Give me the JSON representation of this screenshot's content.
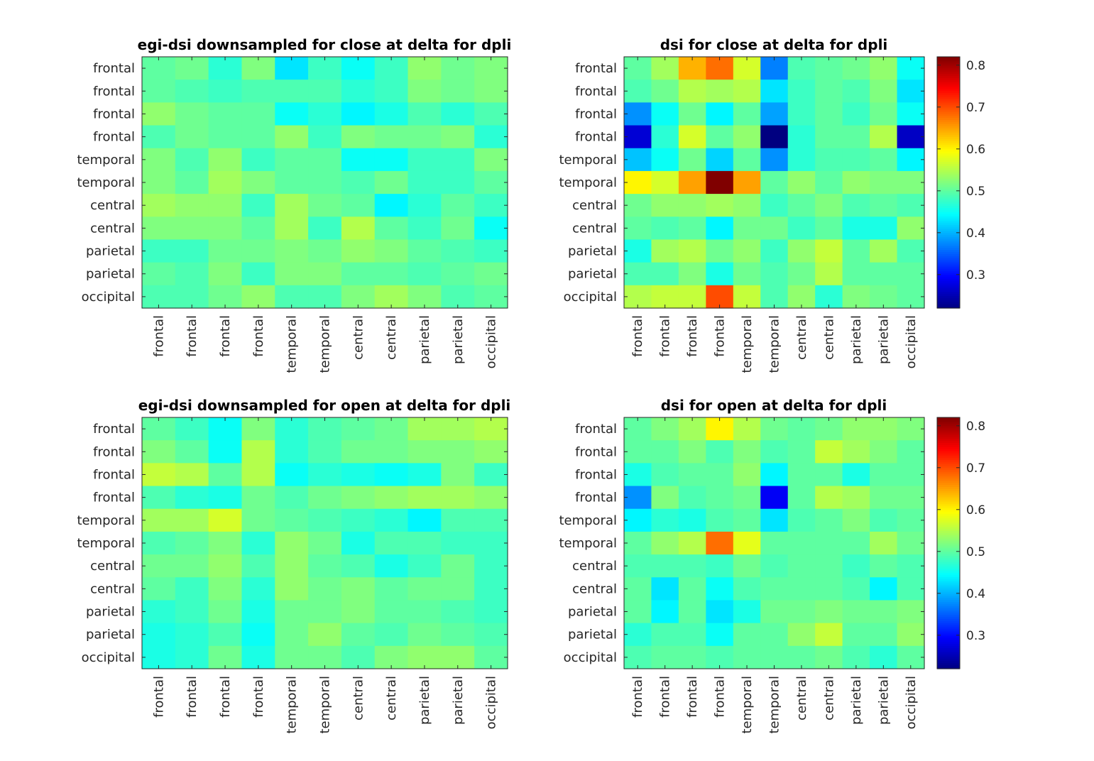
{
  "chart_data": [
    {
      "type": "heatmap",
      "title": "egi-dsi downsampled for close at delta for dpli",
      "row_labels": [
        "frontal",
        "frontal",
        "frontal ",
        "frontal",
        "temporal",
        "temporal",
        "central",
        "central",
        "parietal",
        "parietal",
        "occipital"
      ],
      "col_labels": [
        "frontal",
        "frontal",
        "frontal",
        "frontal",
        "temporal",
        "temporal",
        "central",
        "central",
        "parietal",
        "parietal",
        "occipital"
      ],
      "color_limits": [
        0.22,
        0.82
      ],
      "colormap": "jet",
      "values": [
        [
          0.5,
          0.51,
          0.47,
          0.52,
          0.43,
          0.48,
          0.45,
          0.48,
          0.53,
          0.51,
          0.52
        ],
        [
          0.5,
          0.49,
          0.48,
          0.49,
          0.49,
          0.49,
          0.47,
          0.48,
          0.52,
          0.51,
          0.52
        ],
        [
          0.53,
          0.51,
          0.5,
          0.5,
          0.45,
          0.47,
          0.44,
          0.46,
          0.49,
          0.47,
          0.49
        ],
        [
          0.49,
          0.51,
          0.5,
          0.5,
          0.53,
          0.48,
          0.52,
          0.51,
          0.51,
          0.52,
          0.47
        ],
        [
          0.52,
          0.49,
          0.53,
          0.48,
          0.5,
          0.5,
          0.45,
          0.45,
          0.48,
          0.48,
          0.52
        ],
        [
          0.52,
          0.5,
          0.54,
          0.52,
          0.5,
          0.5,
          0.49,
          0.51,
          0.48,
          0.48,
          0.5
        ],
        [
          0.54,
          0.53,
          0.53,
          0.48,
          0.54,
          0.51,
          0.5,
          0.44,
          0.47,
          0.5,
          0.48
        ],
        [
          0.52,
          0.52,
          0.52,
          0.5,
          0.54,
          0.48,
          0.55,
          0.5,
          0.48,
          0.51,
          0.45
        ],
        [
          0.48,
          0.48,
          0.51,
          0.51,
          0.52,
          0.51,
          0.53,
          0.52,
          0.5,
          0.49,
          0.48
        ],
        [
          0.5,
          0.49,
          0.52,
          0.48,
          0.52,
          0.52,
          0.5,
          0.5,
          0.49,
          0.5,
          0.51
        ],
        [
          0.49,
          0.49,
          0.51,
          0.53,
          0.49,
          0.49,
          0.52,
          0.54,
          0.52,
          0.49,
          0.5
        ]
      ]
    },
    {
      "type": "heatmap",
      "title": "dsi for close at delta for dpli",
      "row_labels": [
        "frontal",
        "frontal",
        "frontal",
        "frontal",
        "temporal",
        "temporal",
        "central",
        "central",
        "parietal",
        "parietal",
        "occipital"
      ],
      "col_labels": [
        "frontal",
        "frontal",
        "frontal",
        "frontal",
        "temporal",
        "temporal",
        "central",
        "central",
        "parietal",
        "parietal",
        "occipital"
      ],
      "color_limits": [
        0.22,
        0.82
      ],
      "colormap": "jet",
      "colorbar_ticks": [
        0.3,
        0.4,
        0.5,
        0.6,
        0.7,
        0.8
      ],
      "values": [
        [
          0.5,
          0.54,
          0.64,
          0.68,
          0.57,
          0.37,
          0.49,
          0.5,
          0.51,
          0.53,
          0.45
        ],
        [
          0.49,
          0.51,
          0.55,
          0.54,
          0.55,
          0.43,
          0.48,
          0.5,
          0.49,
          0.52,
          0.43
        ],
        [
          0.38,
          0.45,
          0.51,
          0.44,
          0.5,
          0.39,
          0.48,
          0.5,
          0.48,
          0.51,
          0.45
        ],
        [
          0.27,
          0.47,
          0.57,
          0.5,
          0.53,
          0.22,
          0.47,
          0.5,
          0.5,
          0.55,
          0.26
        ],
        [
          0.41,
          0.45,
          0.51,
          0.42,
          0.5,
          0.38,
          0.47,
          0.49,
          0.49,
          0.5,
          0.44
        ],
        [
          0.6,
          0.57,
          0.65,
          0.82,
          0.65,
          0.5,
          0.53,
          0.5,
          0.53,
          0.52,
          0.52
        ],
        [
          0.51,
          0.53,
          0.53,
          0.54,
          0.53,
          0.48,
          0.5,
          0.52,
          0.49,
          0.5,
          0.49
        ],
        [
          0.5,
          0.49,
          0.5,
          0.44,
          0.51,
          0.51,
          0.48,
          0.5,
          0.46,
          0.46,
          0.53
        ],
        [
          0.46,
          0.54,
          0.55,
          0.51,
          0.53,
          0.48,
          0.53,
          0.56,
          0.5,
          0.54,
          0.49
        ],
        [
          0.49,
          0.49,
          0.52,
          0.46,
          0.51,
          0.49,
          0.51,
          0.55,
          0.5,
          0.5,
          0.5
        ],
        [
          0.55,
          0.56,
          0.56,
          0.7,
          0.56,
          0.49,
          0.53,
          0.47,
          0.52,
          0.51,
          0.5
        ]
      ]
    },
    {
      "type": "heatmap",
      "title": "egi-dsi downsampled for open at delta for dpli",
      "row_labels": [
        "frontal",
        "frontal",
        "frontal ",
        "frontal",
        "temporal",
        "temporal",
        "central",
        "central",
        "parietal",
        "parietal",
        "occipital"
      ],
      "col_labels": [
        "frontal",
        "frontal",
        "frontal",
        "frontal",
        "temporal",
        "temporal",
        "central",
        "central",
        "parietal",
        "parietal",
        "occipital"
      ],
      "color_limits": [
        0.22,
        0.82
      ],
      "colormap": "jet",
      "values": [
        [
          0.5,
          0.48,
          0.45,
          0.52,
          0.47,
          0.49,
          0.5,
          0.51,
          0.54,
          0.54,
          0.55
        ],
        [
          0.52,
          0.5,
          0.45,
          0.55,
          0.47,
          0.49,
          0.51,
          0.51,
          0.52,
          0.52,
          0.53
        ],
        [
          0.56,
          0.55,
          0.5,
          0.55,
          0.45,
          0.47,
          0.46,
          0.45,
          0.46,
          0.52,
          0.48
        ],
        [
          0.49,
          0.47,
          0.46,
          0.51,
          0.49,
          0.51,
          0.52,
          0.53,
          0.54,
          0.54,
          0.53
        ],
        [
          0.54,
          0.54,
          0.57,
          0.51,
          0.5,
          0.49,
          0.48,
          0.47,
          0.44,
          0.49,
          0.49
        ],
        [
          0.49,
          0.5,
          0.52,
          0.47,
          0.53,
          0.51,
          0.46,
          0.49,
          0.49,
          0.48,
          0.48
        ],
        [
          0.51,
          0.51,
          0.53,
          0.49,
          0.53,
          0.5,
          0.49,
          0.46,
          0.48,
          0.51,
          0.48
        ],
        [
          0.5,
          0.48,
          0.52,
          0.47,
          0.53,
          0.51,
          0.52,
          0.5,
          0.51,
          0.51,
          0.48
        ],
        [
          0.47,
          0.48,
          0.51,
          0.46,
          0.51,
          0.51,
          0.52,
          0.5,
          0.5,
          0.49,
          0.48
        ],
        [
          0.46,
          0.47,
          0.49,
          0.45,
          0.51,
          0.53,
          0.5,
          0.49,
          0.51,
          0.5,
          0.49
        ],
        [
          0.46,
          0.47,
          0.51,
          0.46,
          0.51,
          0.51,
          0.49,
          0.52,
          0.53,
          0.53,
          0.5
        ]
      ]
    },
    {
      "type": "heatmap",
      "title": "dsi for open at delta for dpli",
      "row_labels": [
        "frontal",
        "frontal",
        "frontal",
        "frontal",
        "temporal",
        "temporal",
        "central",
        "central",
        "parietal",
        "parietal",
        "occipital"
      ],
      "col_labels": [
        "frontal",
        "frontal",
        "frontal",
        "frontal",
        "temporal",
        "temporal",
        "central",
        "central",
        "parietal",
        "parietal",
        "occipital"
      ],
      "color_limits": [
        0.22,
        0.82
      ],
      "colormap": "jet",
      "colorbar_ticks": [
        0.3,
        0.4,
        0.5,
        0.6,
        0.7,
        0.8
      ],
      "values": [
        [
          0.5,
          0.52,
          0.54,
          0.6,
          0.55,
          0.51,
          0.5,
          0.51,
          0.53,
          0.53,
          0.52
        ],
        [
          0.5,
          0.5,
          0.52,
          0.49,
          0.52,
          0.49,
          0.5,
          0.56,
          0.54,
          0.52,
          0.5
        ],
        [
          0.46,
          0.49,
          0.5,
          0.5,
          0.53,
          0.44,
          0.5,
          0.5,
          0.46,
          0.5,
          0.5
        ],
        [
          0.38,
          0.52,
          0.49,
          0.5,
          0.51,
          0.29,
          0.5,
          0.55,
          0.54,
          0.51,
          0.51
        ],
        [
          0.44,
          0.47,
          0.46,
          0.49,
          0.5,
          0.43,
          0.49,
          0.5,
          0.52,
          0.49,
          0.5
        ],
        [
          0.5,
          0.53,
          0.55,
          0.68,
          0.58,
          0.5,
          0.5,
          0.5,
          0.5,
          0.54,
          0.51
        ],
        [
          0.49,
          0.49,
          0.49,
          0.48,
          0.51,
          0.49,
          0.5,
          0.5,
          0.48,
          0.5,
          0.49
        ],
        [
          0.5,
          0.43,
          0.5,
          0.45,
          0.49,
          0.5,
          0.5,
          0.5,
          0.49,
          0.44,
          0.49
        ],
        [
          0.5,
          0.44,
          0.5,
          0.43,
          0.46,
          0.51,
          0.51,
          0.52,
          0.51,
          0.51,
          0.52
        ],
        [
          0.47,
          0.49,
          0.49,
          0.45,
          0.5,
          0.5,
          0.53,
          0.56,
          0.5,
          0.5,
          0.53
        ],
        [
          0.49,
          0.5,
          0.5,
          0.49,
          0.5,
          0.5,
          0.5,
          0.51,
          0.49,
          0.47,
          0.5
        ]
      ]
    }
  ]
}
